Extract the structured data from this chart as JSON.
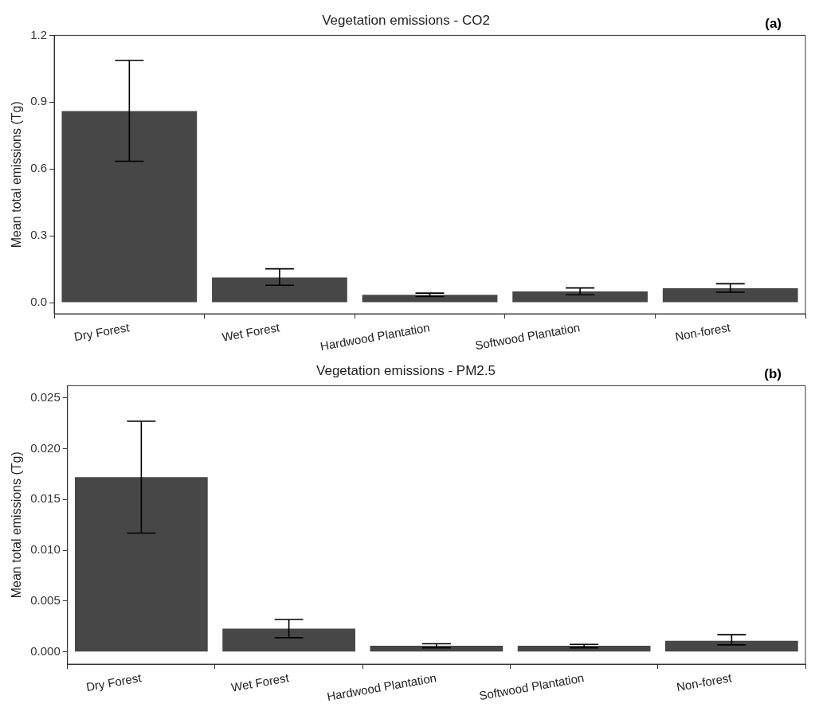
{
  "chart_data": [
    {
      "type": "bar",
      "title": "Vegetation emissions - CO2",
      "ylabel": "Mean total emissions (Tg)",
      "annotations": [
        "(a)"
      ],
      "categories": [
        "Dry Forest",
        "Wet Forest",
        "Hardwood Plantation",
        "Softwood Plantation",
        "Non-forest"
      ],
      "values": [
        0.86,
        0.113,
        0.035,
        0.05,
        0.065
      ],
      "color": "#474747",
      "errors": [
        [
          0.635,
          1.088
        ],
        [
          0.078,
          0.152
        ],
        [
          0.027,
          0.043
        ],
        [
          0.035,
          0.066
        ],
        [
          0.047,
          0.085
        ]
      ],
      "ylim": [
        -0.05,
        1.2
      ],
      "yticks": [
        {
          "value": 0,
          "label": "0.0"
        },
        {
          "value": 0.3,
          "label": "0.3"
        },
        {
          "value": 0.6,
          "label": "0.6"
        },
        {
          "value": 0.9,
          "label": "0.9"
        },
        {
          "value": 1.2,
          "label": "1.2"
        }
      ]
    },
    {
      "type": "bar",
      "title": "Vegetation emissions - PM2.5",
      "ylabel": "Mean total emissions (Tg)",
      "annotations": [
        "(b)"
      ],
      "categories": [
        "Dry Forest",
        "Wet Forest",
        "Hardwood Plantation",
        "Softwood Plantation",
        "Non-forest"
      ],
      "values": [
        0.0172,
        0.0023,
        0.0006,
        0.0006,
        0.0011
      ],
      "color": "#474747",
      "errors": [
        [
          0.0117,
          0.0227
        ],
        [
          0.0014,
          0.0032
        ],
        [
          0.0004,
          0.0008
        ],
        [
          0.0004,
          0.00075
        ],
        [
          0.0007,
          0.0017
        ]
      ],
      "ylim": [
        -0.0012,
        0.0262
      ],
      "yticks": [
        {
          "value": 0,
          "label": "0.000"
        },
        {
          "value": 0.005,
          "label": "0.005"
        },
        {
          "value": 0.01,
          "label": "0.010"
        },
        {
          "value": 0.015,
          "label": "0.015"
        },
        {
          "value": 0.02,
          "label": "0.020"
        },
        {
          "value": 0.025,
          "label": "0.025"
        }
      ]
    }
  ]
}
